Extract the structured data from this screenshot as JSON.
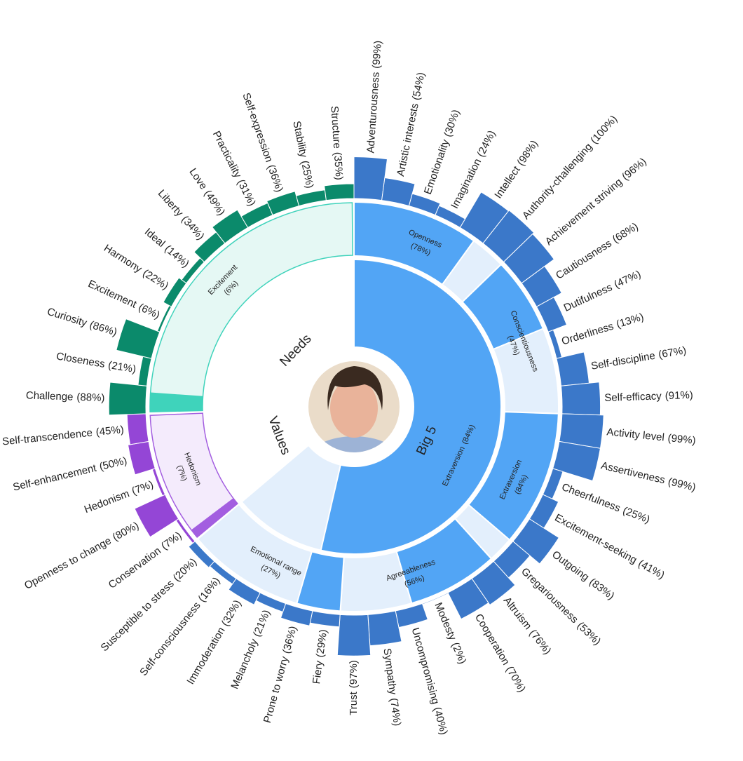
{
  "chart_data": {
    "type": "sunburst",
    "categories": [
      {
        "name": "Big 5",
        "color": "#3b78c9",
        "fill": "#52a5f5",
        "empty": "#e3effc",
        "highlight": {
          "name": "Extraversion",
          "value": 84,
          "value_label": "(84%)"
        },
        "children": [
          {
            "name": "Openness",
            "value": 78,
            "value_label": "(78%)",
            "children": [
              {
                "name": "Adventurousness",
                "value": 99,
                "value_label": "(99%)"
              },
              {
                "name": "Artistic interests",
                "value": 54,
                "value_label": "(54%)"
              },
              {
                "name": "Emotionality",
                "value": 30,
                "value_label": "(30%)"
              },
              {
                "name": "Imagination",
                "value": 24,
                "value_label": "(24%)"
              },
              {
                "name": "Intellect",
                "value": 98,
                "value_label": "(98%)"
              },
              {
                "name": "Authority-challenging",
                "value": 100,
                "value_label": "(100%)"
              }
            ]
          },
          {
            "name": "Conscientiousness",
            "value": 47,
            "value_label": "(47%)",
            "children": [
              {
                "name": "Achievement striving",
                "value": 96,
                "value_label": "(96%)"
              },
              {
                "name": "Cautiousness",
                "value": 68,
                "value_label": "(68%)"
              },
              {
                "name": "Dutifulness",
                "value": 47,
                "value_label": "(47%)"
              },
              {
                "name": "Orderliness",
                "value": 13,
                "value_label": "(13%)"
              },
              {
                "name": "Self-discipline",
                "value": 67,
                "value_label": "(67%)"
              },
              {
                "name": "Self-efficacy",
                "value": 91,
                "value_label": "(91%)"
              }
            ]
          },
          {
            "name": "Extraversion",
            "value": 84,
            "value_label": "(84%)",
            "children": [
              {
                "name": "Activity level",
                "value": 99,
                "value_label": "(99%)"
              },
              {
                "name": "Assertiveness",
                "value": 99,
                "value_label": "(99%)"
              },
              {
                "name": "Cheerfulness",
                "value": 25,
                "value_label": "(25%)"
              },
              {
                "name": "Excitement-seeking",
                "value": 41,
                "value_label": "(41%)"
              },
              {
                "name": "Outgoing",
                "value": 83,
                "value_label": "(83%)"
              },
              {
                "name": "Gregariousness",
                "value": 53,
                "value_label": "(53%)"
              }
            ]
          },
          {
            "name": "Agreeableness",
            "value": 56,
            "value_label": "(56%)",
            "children": [
              {
                "name": "Altruism",
                "value": 76,
                "value_label": "(76%)"
              },
              {
                "name": "Cooperation",
                "value": 70,
                "value_label": "(70%)"
              },
              {
                "name": "Modesty",
                "value": 2,
                "value_label": "(2%)"
              },
              {
                "name": "Uncompromising",
                "value": 40,
                "value_label": "(40%)"
              },
              {
                "name": "Sympathy",
                "value": 74,
                "value_label": "(74%)"
              },
              {
                "name": "Trust",
                "value": 97,
                "value_label": "(97%)"
              }
            ]
          },
          {
            "name": "Emotional range",
            "value": 27,
            "value_label": "(27%)",
            "children": [
              {
                "name": "Fiery",
                "value": 29,
                "value_label": "(29%)"
              },
              {
                "name": "Prone to worry",
                "value": 36,
                "value_label": "(36%)"
              },
              {
                "name": "Melancholy",
                "value": 21,
                "value_label": "(21%)"
              },
              {
                "name": "Immoderation",
                "value": 32,
                "value_label": "(32%)"
              },
              {
                "name": "Self-consciousness",
                "value": 16,
                "value_label": "(16%)"
              },
              {
                "name": "Susceptible to stress",
                "value": 20,
                "value_label": "(20%)"
              }
            ]
          }
        ]
      },
      {
        "name": "Values",
        "color": "#9446d6",
        "fill": "#a35ee0",
        "empty": "#f4ebfc",
        "highlight": {
          "name": "Hedonism",
          "value": 7,
          "value_label": "(7%)"
        },
        "children": [
          {
            "name": "Conservation",
            "value": 7,
            "value_label": "(7%)"
          },
          {
            "name": "Openness to change",
            "value": 80,
            "value_label": "(80%)"
          },
          {
            "name": "Hedonism",
            "value": 7,
            "value_label": "(7%)"
          },
          {
            "name": "Self-enhancement",
            "value": 50,
            "value_label": "(50%)"
          },
          {
            "name": "Self-transcendence",
            "value": 45,
            "value_label": "(45%)"
          }
        ]
      },
      {
        "name": "Needs",
        "color": "#0b8a6b",
        "fill": "#3fd3bb",
        "empty": "#e5f8f4",
        "highlight": {
          "name": "Excitement",
          "value": 6,
          "value_label": "(6%)"
        },
        "children": [
          {
            "name": "Challenge",
            "value": 88,
            "value_label": "(88%)"
          },
          {
            "name": "Closeness",
            "value": 21,
            "value_label": "(21%)"
          },
          {
            "name": "Curiosity",
            "value": 86,
            "value_label": "(86%)"
          },
          {
            "name": "Excitement",
            "value": 6,
            "value_label": "(6%)"
          },
          {
            "name": "Harmony",
            "value": 22,
            "value_label": "(22%)"
          },
          {
            "name": "Ideal",
            "value": 14,
            "value_label": "(14%)"
          },
          {
            "name": "Liberty",
            "value": 34,
            "value_label": "(34%)"
          },
          {
            "name": "Love",
            "value": 49,
            "value_label": "(49%)"
          },
          {
            "name": "Practicality",
            "value": 31,
            "value_label": "(31%)"
          },
          {
            "name": "Self-expression",
            "value": 36,
            "value_label": "(36%)"
          },
          {
            "name": "Stability",
            "value": 25,
            "value_label": "(25%)"
          },
          {
            "name": "Structure",
            "value": 35,
            "value_label": "(35%)"
          }
        ]
      }
    ]
  }
}
